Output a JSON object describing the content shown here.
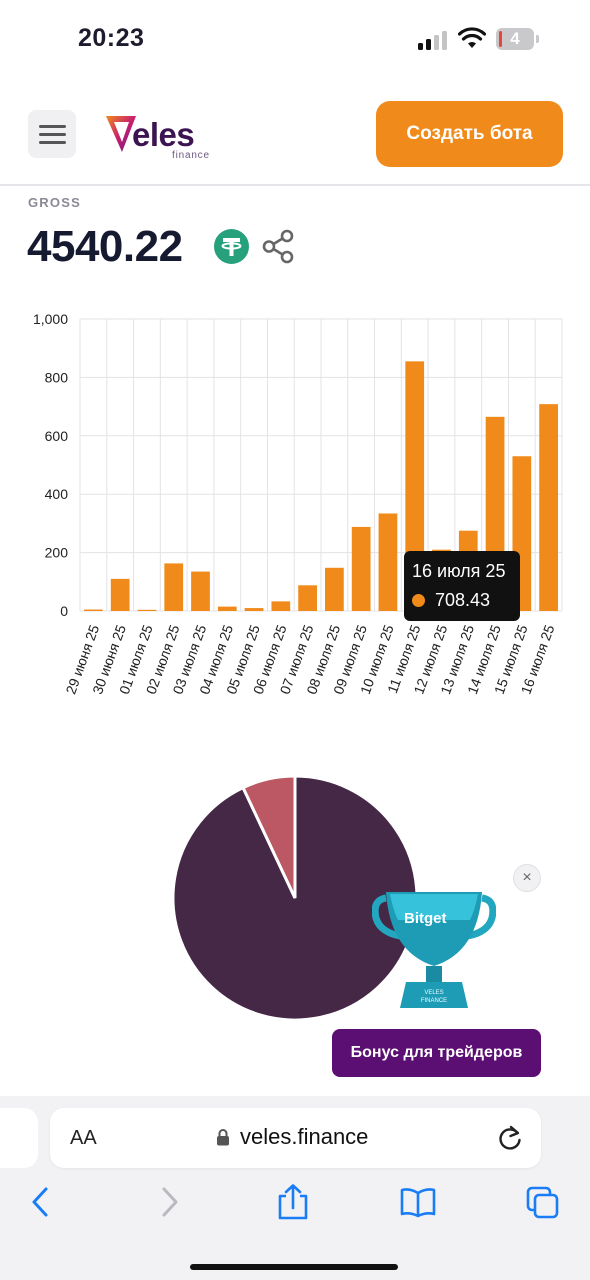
{
  "status_bar": {
    "time": "20:23",
    "battery": "4"
  },
  "header": {
    "logo_text": "eles",
    "logo_sub": "finance",
    "create_bot_label": "Создать бота"
  },
  "gross": {
    "label": "GROSS",
    "value": "4540.22",
    "currency_icon": "tether-icon"
  },
  "chart_data": {
    "type": "bar",
    "categories": [
      "29 июня 25",
      "30 июня 25",
      "01 июля 25",
      "02 июля 25",
      "03 июля 25",
      "04 июля 25",
      "05 июля 25",
      "06 июля 25",
      "07 июля 25",
      "08 июля 25",
      "09 июля 25",
      "10 июля 25",
      "11 июля 25",
      "12 июля 25",
      "13 июля 25",
      "14 июля 25",
      "15 июля 25",
      "16 июля 25"
    ],
    "values": [
      5,
      110,
      4,
      163,
      135,
      15,
      10,
      33,
      88,
      148,
      288,
      334,
      855,
      210,
      275,
      665,
      530,
      708.43
    ],
    "yticks": [
      "0",
      "200",
      "400",
      "600",
      "800",
      "1,000"
    ],
    "ylim": [
      0,
      1000
    ],
    "grid": true,
    "color": "#f08a1a",
    "tooltip": {
      "date": "16 июля 25",
      "value": "708.43"
    }
  },
  "pie_data": {
    "type": "pie",
    "values": [
      93,
      7
    ],
    "colors": [
      "#452746",
      "#bb5863"
    ]
  },
  "promo": {
    "brand": "Bitget",
    "button_label": "Бонус для трейдеров",
    "close_label": "×"
  },
  "browser": {
    "aa_label": "AA",
    "url": "veles.finance"
  }
}
